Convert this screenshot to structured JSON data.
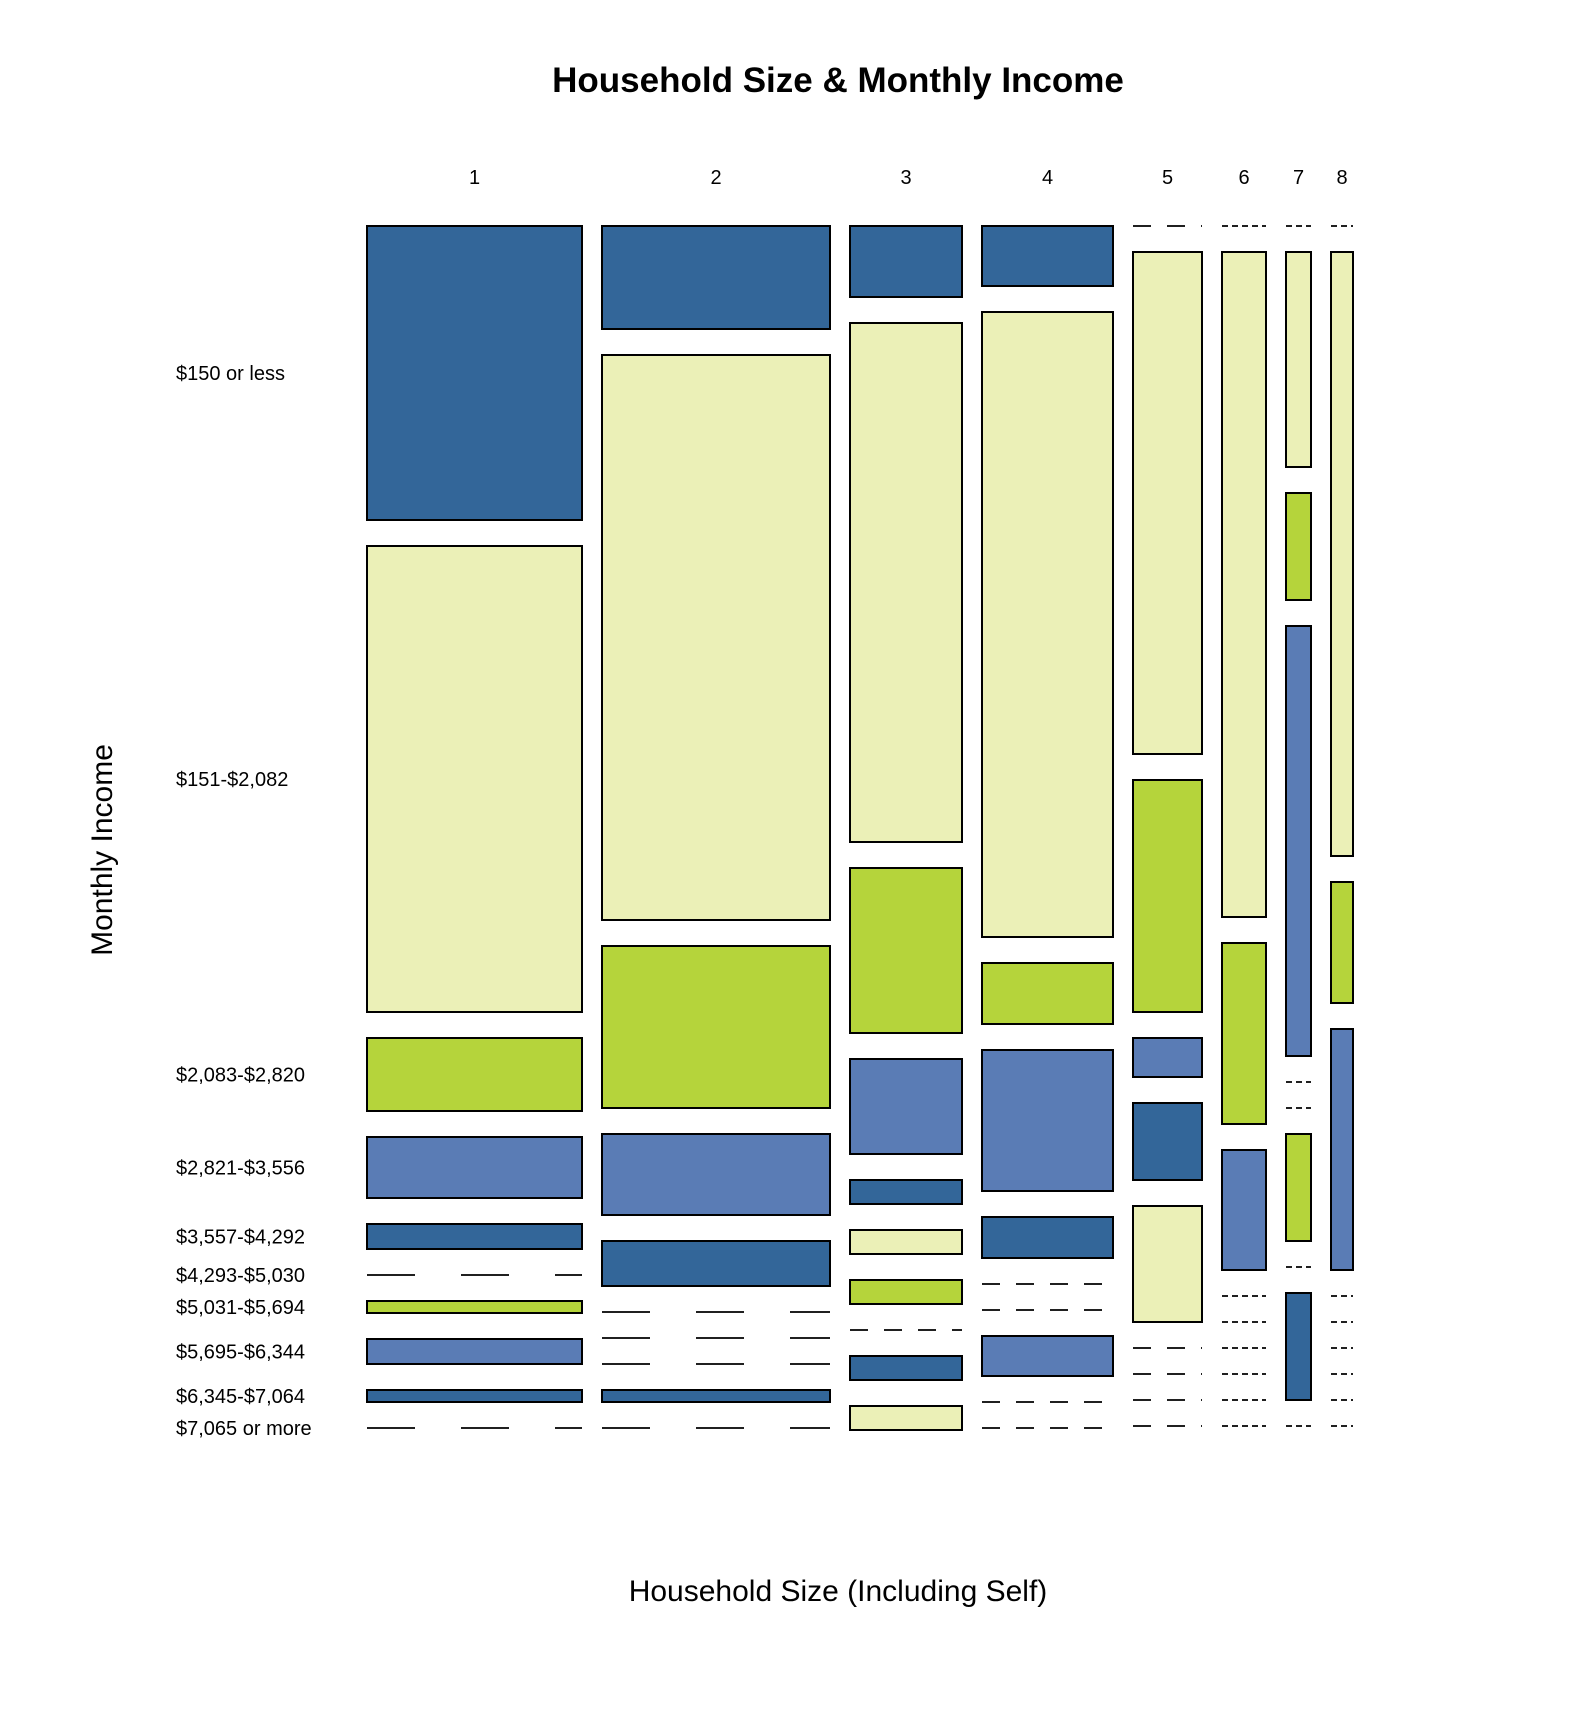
{
  "chart_data": {
    "type": "mosaic",
    "title": "Household Size & Monthly Income",
    "xlabel": "Household Size (Including Self)",
    "ylabel": "Monthly Income",
    "x_categories": [
      "1",
      "2",
      "3",
      "4",
      "5",
      "6",
      "7",
      "8"
    ],
    "x_widths": [
      215,
      228,
      112,
      131,
      69,
      44,
      25,
      22
    ],
    "y_categories": [
      "$150 or less",
      "$151-$2,082",
      "$2,083-$2,820",
      "$2,821-$3,556",
      "$3,557-$4,292",
      "$4,293-$5,030",
      "$5,031-$5,694",
      "$5,695-$6,344",
      "$6,345-$7,064",
      "$7,065 or more"
    ],
    "palette": {
      "dark_blue": "#336699",
      "pale_yellow": "#EBF0B7",
      "lime": "#B5D43B",
      "mid_blue": "#5A7CB5"
    },
    "columns": [
      {
        "category": "1",
        "cells": [
          {
            "income": "$150 or less",
            "height": 294,
            "color": "dark_blue"
          },
          {
            "income": "$151-$2,082",
            "height": 466,
            "color": "pale_yellow"
          },
          {
            "income": "$2,083-$2,820",
            "height": 73,
            "color": "lime"
          },
          {
            "income": "$2,821-$3,556",
            "height": 61,
            "color": "mid_blue"
          },
          {
            "income": "$3,557-$4,292",
            "height": 25,
            "color": "dark_blue"
          },
          {
            "income": "$4,293-$5,030",
            "height": 0,
            "color": "pale_yellow"
          },
          {
            "income": "$5,031-$5,694",
            "height": 12,
            "color": "lime"
          },
          {
            "income": "$5,695-$6,344",
            "height": 25,
            "color": "mid_blue"
          },
          {
            "income": "$6,345-$7,064",
            "height": 12,
            "color": "dark_blue"
          },
          {
            "income": "$7,065 or more",
            "height": 0,
            "color": "pale_yellow"
          }
        ]
      },
      {
        "category": "2",
        "cells": [
          {
            "income": "$150 or less",
            "height": 103,
            "color": "dark_blue"
          },
          {
            "income": "$151-$2,082",
            "height": 565,
            "color": "pale_yellow"
          },
          {
            "income": "$2,083-$2,820",
            "height": 162,
            "color": "lime"
          },
          {
            "income": "$2,821-$3,556",
            "height": 81,
            "color": "mid_blue"
          },
          {
            "income": "$3,557-$4,292",
            "height": 45,
            "color": "dark_blue"
          },
          {
            "income": "$4,293-$5,030",
            "height": 0,
            "color": "pale_yellow"
          },
          {
            "income": "$5,031-$5,694",
            "height": 0,
            "color": "lime"
          },
          {
            "income": "$5,695-$6,344",
            "height": 0,
            "color": "mid_blue"
          },
          {
            "income": "$6,345-$7,064",
            "height": 12,
            "color": "dark_blue"
          },
          {
            "income": "$7,065 or more",
            "height": 0,
            "color": "pale_yellow"
          }
        ]
      },
      {
        "category": "3",
        "cells": [
          {
            "income": "$150 or less",
            "height": 71,
            "color": "dark_blue"
          },
          {
            "income": "$151-$2,082",
            "height": 519,
            "color": "pale_yellow"
          },
          {
            "income": "$2,083-$2,820",
            "height": 165,
            "color": "lime"
          },
          {
            "income": "$2,821-$3,556",
            "height": 95,
            "color": "mid_blue"
          },
          {
            "income": "$3,557-$4,292",
            "height": 24,
            "color": "dark_blue"
          },
          {
            "income": "$4,293-$5,030",
            "height": 24,
            "color": "pale_yellow"
          },
          {
            "income": "$5,031-$5,694",
            "height": 24,
            "color": "lime"
          },
          {
            "income": "$5,695-$6,344",
            "height": 0,
            "color": "mid_blue"
          },
          {
            "income": "$6,345-$7,064",
            "height": 24,
            "color": "dark_blue"
          },
          {
            "income": "$7,065 or more",
            "height": 24,
            "color": "pale_yellow"
          }
        ]
      },
      {
        "category": "4",
        "cells": [
          {
            "income": "$150 or less",
            "height": 60,
            "color": "dark_blue"
          },
          {
            "income": "$151-$2,082",
            "height": 625,
            "color": "pale_yellow"
          },
          {
            "income": "$2,083-$2,820",
            "height": 61,
            "color": "lime"
          },
          {
            "income": "$2,821-$3,556",
            "height": 141,
            "color": "mid_blue"
          },
          {
            "income": "$3,557-$4,292",
            "height": 41,
            "color": "dark_blue"
          },
          {
            "income": "$4,293-$5,030",
            "height": 0,
            "color": "pale_yellow"
          },
          {
            "income": "$5,031-$5,694",
            "height": 0,
            "color": "lime"
          },
          {
            "income": "$5,695-$6,344",
            "height": 40,
            "color": "mid_blue"
          },
          {
            "income": "$6,345-$7,064",
            "height": 0,
            "color": "dark_blue"
          },
          {
            "income": "$7,065 or more",
            "height": 0,
            "color": "pale_yellow"
          }
        ]
      },
      {
        "category": "5",
        "cells": [
          {
            "income": "$150 or less",
            "height": 0,
            "color": "dark_blue"
          },
          {
            "income": "$151-$2,082",
            "height": 502,
            "color": "pale_yellow"
          },
          {
            "income": "$2,083-$2,820",
            "height": 232,
            "color": "lime"
          },
          {
            "income": "$2,821-$3,556",
            "height": 39,
            "color": "mid_blue"
          },
          {
            "income": "$3,557-$4,292",
            "height": 77,
            "color": "dark_blue"
          },
          {
            "income": "$4,293-$5,030",
            "height": 116,
            "color": "pale_yellow"
          },
          {
            "income": "$5,031-$5,694",
            "height": 0,
            "color": "lime"
          },
          {
            "income": "$5,695-$6,344",
            "height": 0,
            "color": "mid_blue"
          },
          {
            "income": "$6,345-$7,064",
            "height": 0,
            "color": "dark_blue"
          },
          {
            "income": "$7,065 or more",
            "height": 0,
            "color": "pale_yellow"
          }
        ]
      },
      {
        "category": "6",
        "cells": [
          {
            "income": "$150 or less",
            "height": 0,
            "color": "dark_blue"
          },
          {
            "income": "$151-$2,082",
            "height": 665,
            "color": "pale_yellow"
          },
          {
            "income": "$2,083-$2,820",
            "height": 181,
            "color": "lime"
          },
          {
            "income": "$2,821-$3,556",
            "height": 120,
            "color": "mid_blue"
          },
          {
            "income": "$3,557-$4,292",
            "height": 0,
            "color": "dark_blue"
          },
          {
            "income": "$4,293-$5,030",
            "height": 0,
            "color": "pale_yellow"
          },
          {
            "income": "$5,031-$5,694",
            "height": 0,
            "color": "lime"
          },
          {
            "income": "$5,695-$6,344",
            "height": 0,
            "color": "mid_blue"
          },
          {
            "income": "$6,345-$7,064",
            "height": 0,
            "color": "dark_blue"
          },
          {
            "income": "$7,065 or more",
            "height": 0,
            "color": "pale_yellow"
          }
        ]
      },
      {
        "category": "7",
        "cells": [
          {
            "income": "$150 or less",
            "height": 0,
            "color": "dark_blue"
          },
          {
            "income": "$151-$2,082",
            "height": 215,
            "color": "pale_yellow"
          },
          {
            "income": "$2,083-$2,820",
            "height": 107,
            "color": "lime"
          },
          {
            "income": "$2,821-$3,556",
            "height": 430,
            "color": "mid_blue"
          },
          {
            "income": "$3,557-$4,292",
            "height": 0,
            "color": "dark_blue"
          },
          {
            "income": "$4,293-$5,030",
            "height": 0,
            "color": "pale_yellow"
          },
          {
            "income": "$5,031-$5,694",
            "height": 107,
            "color": "lime"
          },
          {
            "income": "$5,695-$6,344",
            "height": 0,
            "color": "mid_blue"
          },
          {
            "income": "$6,345-$7,064",
            "height": 107,
            "color": "dark_blue"
          },
          {
            "income": "$7,065 or more",
            "height": 0,
            "color": "pale_yellow"
          }
        ]
      },
      {
        "category": "8",
        "cells": [
          {
            "income": "$150 or less",
            "height": 0,
            "color": "dark_blue"
          },
          {
            "income": "$151-$2,082",
            "height": 604,
            "color": "pale_yellow"
          },
          {
            "income": "$2,083-$2,820",
            "height": 121,
            "color": "lime"
          },
          {
            "income": "$2,821-$3,556",
            "height": 241,
            "color": "mid_blue"
          },
          {
            "income": "$3,557-$4,292",
            "height": 0,
            "color": "dark_blue"
          },
          {
            "income": "$4,293-$5,030",
            "height": 0,
            "color": "pale_yellow"
          },
          {
            "income": "$5,031-$5,694",
            "height": 0,
            "color": "lime"
          },
          {
            "income": "$5,695-$6,344",
            "height": 0,
            "color": "mid_blue"
          },
          {
            "income": "$6,345-$7,064",
            "height": 0,
            "color": "dark_blue"
          },
          {
            "income": "$7,065 or more",
            "height": 0,
            "color": "pale_yellow"
          }
        ]
      }
    ]
  }
}
